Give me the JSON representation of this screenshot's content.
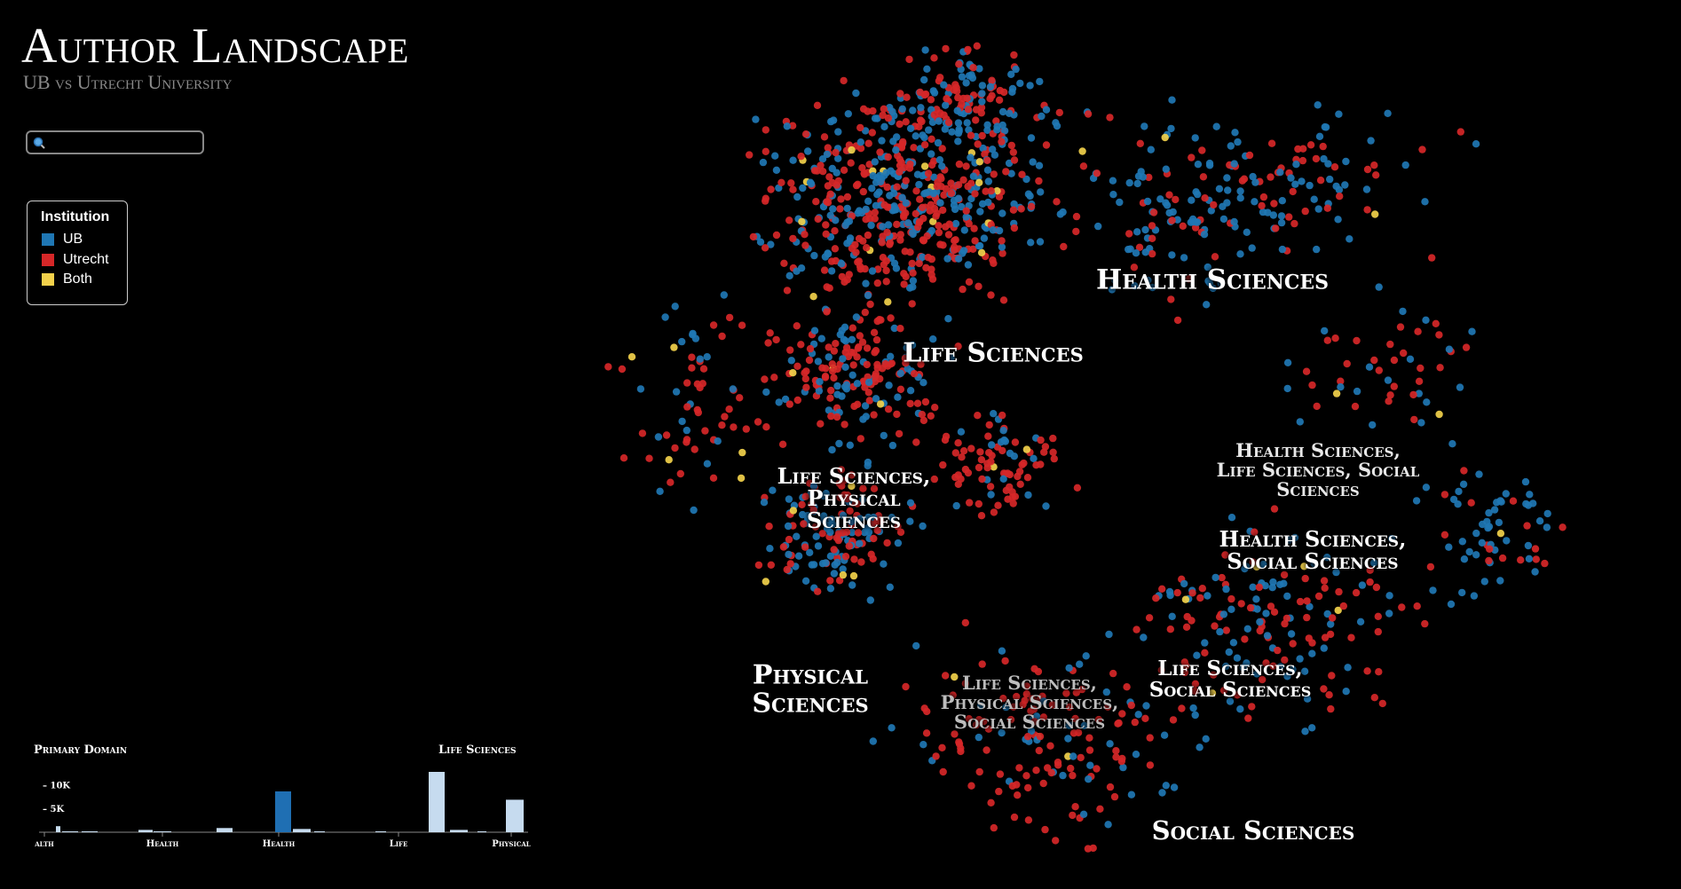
{
  "header": {
    "title": "Author Landscape",
    "subtitle": "UB vs Utrecht University"
  },
  "search": {
    "placeholder": "",
    "value": "",
    "icon": "search-icon"
  },
  "legend": {
    "title": "Institution",
    "items": [
      {
        "label": "UB",
        "color": "#1f77b4"
      },
      {
        "label": "Utrecht",
        "color": "#d62728"
      },
      {
        "label": "Both",
        "color": "#f2d14b"
      }
    ]
  },
  "regions": [
    {
      "label": "Health Sciences"
    },
    {
      "label": "Life Sciences"
    },
    {
      "label": "Life Sciences, Physical Sciences"
    },
    {
      "label": "Health Sciences, Life Sciences, Social Sciences"
    },
    {
      "label": "Health Sciences, Social Sciences"
    },
    {
      "label": "Physical Sciences"
    },
    {
      "label": "Life Sciences, Physical Sciences, Social Sciences"
    },
    {
      "label": "Life Sciences, Social Sciences"
    },
    {
      "label": "Social Sciences"
    }
  ],
  "colors": {
    "ub": "#1f77b4",
    "utrecht": "#d62728",
    "both": "#f2d14b",
    "bar_highlight": "#1f6fb3",
    "bar_light": "#c6dbef"
  },
  "charts": {
    "primary_domain": {
      "title": "Primary Domain",
      "yticks": [
        "10K",
        "5K"
      ]
    },
    "life_sciences": {
      "title": "Life Sciences"
    }
  },
  "chart_data": {
    "type": "bar",
    "title": "Primary Domain",
    "categories": [
      "Health",
      "Health",
      "Health",
      "Life",
      "Physical"
    ],
    "x_tick_labels": [
      "alth",
      "Health",
      "Health",
      "Life",
      "Physical"
    ],
    "y_ticks": [
      "10K",
      "5K"
    ],
    "ylim": [
      0,
      13000
    ],
    "bars": [
      {
        "value": 1300,
        "style": "light"
      },
      {
        "value": 200,
        "style": "light"
      },
      {
        "value": 200,
        "style": "light"
      },
      {
        "value": 500,
        "style": "light"
      },
      {
        "value": 200,
        "style": "light"
      },
      {
        "value": 900,
        "style": "light"
      },
      {
        "value": 8800,
        "style": "highlight"
      },
      {
        "value": 700,
        "style": "light"
      },
      {
        "value": 200,
        "style": "light"
      },
      {
        "value": 200,
        "style": "light"
      },
      {
        "value": 13000,
        "style": "light"
      },
      {
        "value": 500,
        "style": "light"
      },
      {
        "value": 200,
        "style": "light"
      },
      {
        "value": 7000,
        "style": "light"
      }
    ]
  }
}
